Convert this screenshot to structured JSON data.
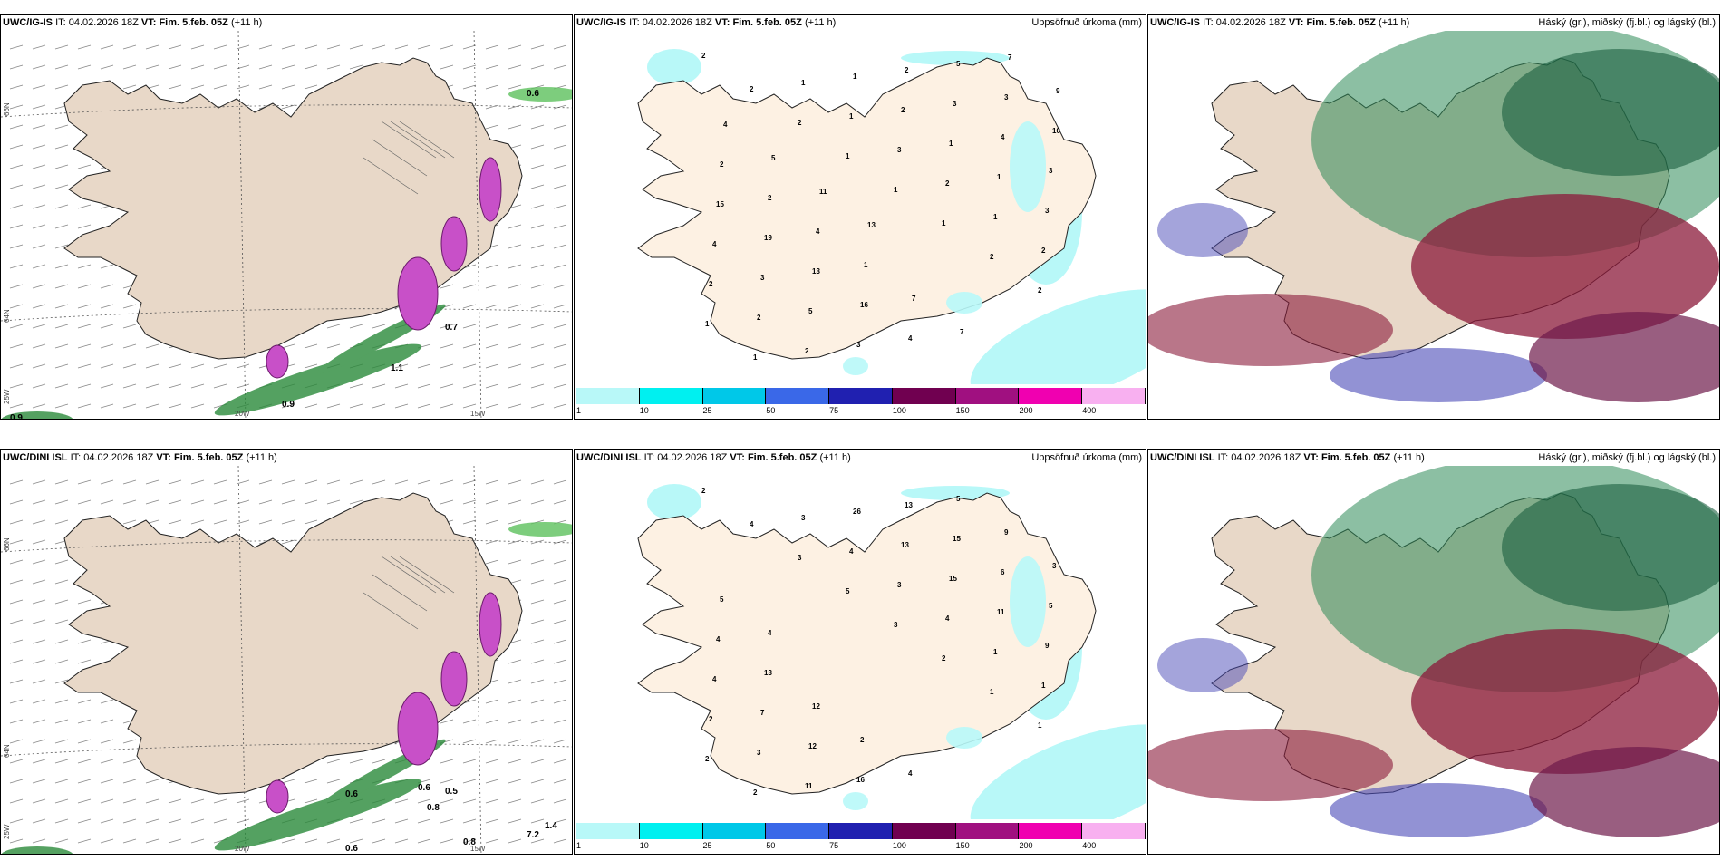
{
  "rows": [
    {
      "panels": [
        {
          "model": "UWC/IG-IS",
          "it_label": "IT:",
          "it_value": "04.02.2026 18Z",
          "vt_label": "VT:",
          "vt_value": "Fim. 5.feb. 05Z",
          "lead": "(+11 h)",
          "title": ""
        },
        {
          "model": "UWC/IG-IS",
          "it_label": "IT:",
          "it_value": "04.02.2026 18Z",
          "vt_label": "VT:",
          "vt_value": "Fim. 5.feb. 05Z",
          "lead": "(+11 h)",
          "title": "Uppsöfnuð úrkoma (mm)"
        },
        {
          "model": "UWC/IG-IS",
          "it_label": "IT:",
          "it_value": "04.02.2026 18Z",
          "vt_label": "VT:",
          "vt_value": "Fim. 5.feb. 05Z",
          "lead": "(+11 h)",
          "title": "Háský (gr.), miðský (fj.bl.) og lágský (bl.)"
        }
      ]
    },
    {
      "panels": [
        {
          "model": "UWC/DINI ISL",
          "it_label": "IT:",
          "it_value": "04.02.2026 18Z",
          "vt_label": "VT:",
          "vt_value": "Fim. 5.feb. 05Z",
          "lead": "(+11 h)",
          "title": ""
        },
        {
          "model": "UWC/DINI ISL",
          "it_label": "IT:",
          "it_value": "04.02.2026 18Z",
          "vt_label": "VT:",
          "vt_value": "Fim. 5.feb. 05Z",
          "lead": "(+11 h)",
          "title": "Uppsöfnuð úrkoma (mm)"
        },
        {
          "model": "UWC/DINI ISL",
          "it_label": "IT:",
          "it_value": "04.02.2026 18Z",
          "vt_label": "VT:",
          "vt_value": "Fim. 5.feb. 05Z",
          "lead": "(+11 h)",
          "title": "Háský (gr.), miðský (fj.bl.) og lágský (bl.)"
        }
      ]
    }
  ],
  "axis_labels": {
    "lon_20w": "20W",
    "lon_15w": "15W",
    "lat_66n": "66N",
    "lat_64n": "64N",
    "lat_25w": "25W"
  },
  "colorbar": {
    "labels": [
      "1",
      "10",
      "25",
      "50",
      "75",
      "100",
      "150",
      "200",
      "400"
    ],
    "colors": [
      "#b8f8f8",
      "#00f0f0",
      "#00c8e8",
      "#3a68e8",
      "#2020b0",
      "#700050",
      "#a01080",
      "#f000b0",
      "#f8b0f0"
    ]
  },
  "colors": {
    "land": "#e8d8c8",
    "land_precip": "#fdf1e3",
    "precip_light": "#b8f8f8",
    "accent_magenta": "#c850c8"
  },
  "top_precip_values": [
    "2",
    "2",
    "2",
    "1",
    "1",
    "1",
    "2",
    "2",
    "1",
    "1",
    "1",
    "1",
    "3",
    "2",
    "1",
    "2",
    "2",
    "2",
    "2",
    "1",
    "2",
    "1",
    "1",
    "3",
    "4",
    "3",
    "5",
    "3",
    "2",
    "3",
    "4",
    "3",
    "15",
    "19",
    "13",
    "16",
    "4",
    "5",
    "3",
    "10",
    "2",
    "2",
    "4",
    "1",
    "7",
    "7",
    "7",
    "9",
    "4",
    "5",
    "11",
    "13"
  ],
  "bottom_precip_values": [
    "2",
    "4",
    "3",
    "5",
    "3",
    "2",
    "1",
    "1",
    "2",
    "2",
    "3",
    "4",
    "3",
    "4",
    "1",
    "1",
    "2",
    "3",
    "11",
    "26",
    "13",
    "15",
    "11",
    "9",
    "4",
    "7",
    "12",
    "16",
    "13",
    "15",
    "6",
    "5",
    "4",
    "13",
    "12",
    "2",
    "4",
    "5",
    "9",
    "3",
    "5",
    "4"
  ],
  "top_wind_values": [
    "0.6",
    "1.1",
    "0.9",
    "0.9",
    "0.7"
  ],
  "bottom_wind_values": [
    "0.6",
    "0.5",
    "0.8",
    "0.6",
    "7.2",
    "0.6",
    "0.8",
    "1.4"
  ]
}
